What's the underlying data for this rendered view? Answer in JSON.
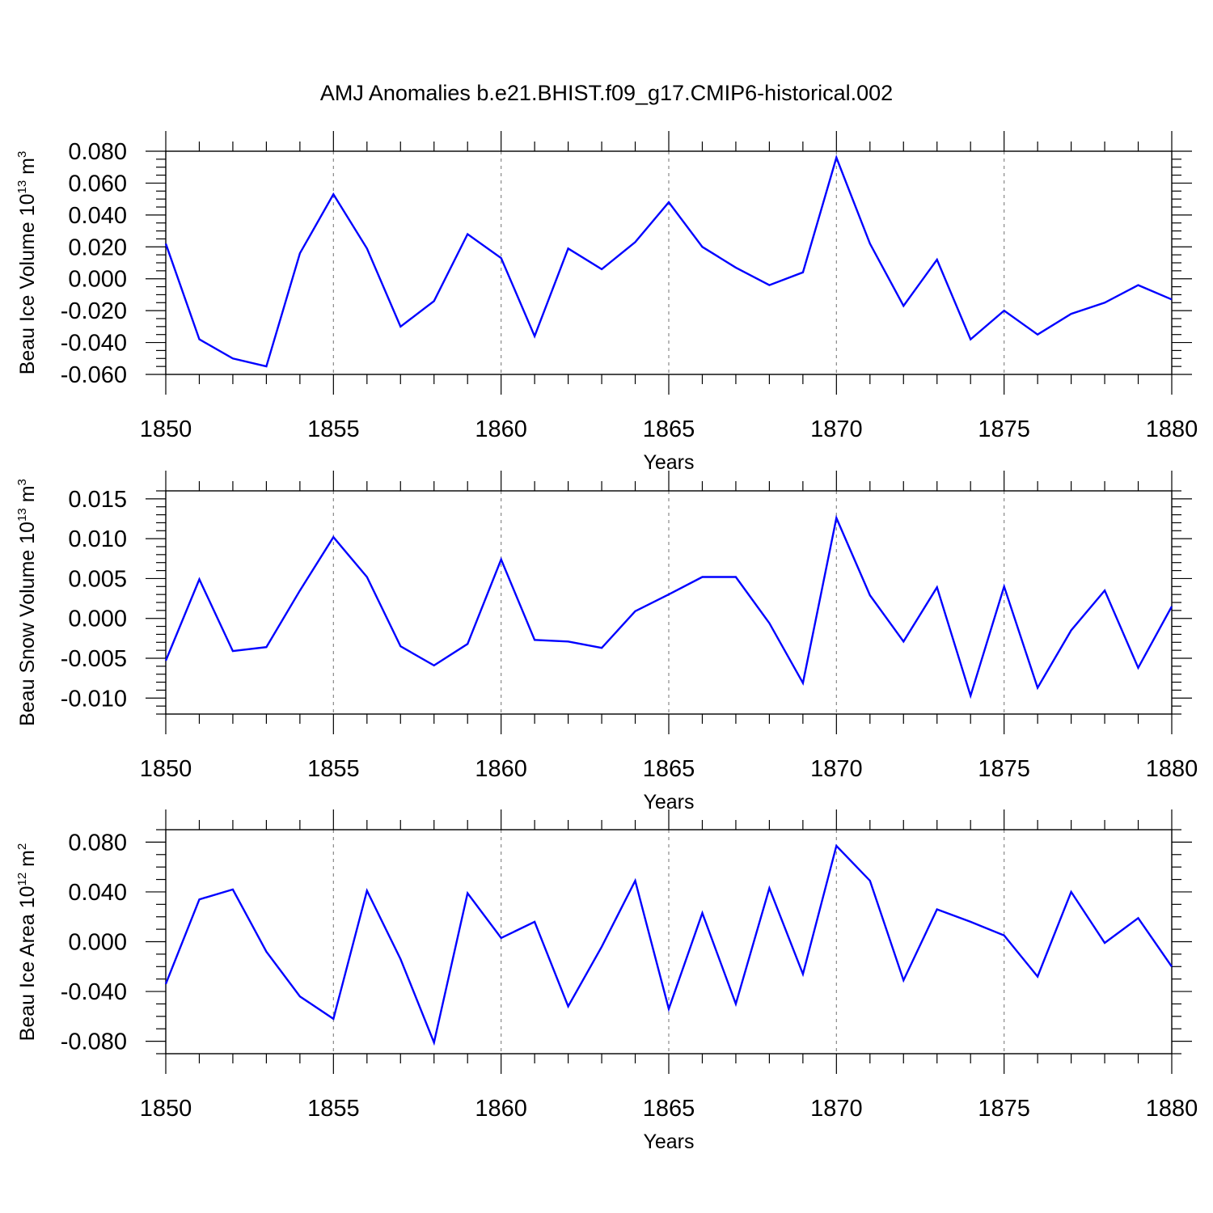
{
  "figure": {
    "title": "AMJ Anomalies b.e21.BHIST.f09_g17.CMIP6-historical.002"
  },
  "colors": {
    "line": "#0000ff",
    "axis": "#000000",
    "grid": "#888888"
  },
  "chart_data": [
    {
      "type": "line",
      "ylabel_main": "Beau Ice Volume 10",
      "ylabel_exp": "13",
      "ylabel_unit": " m",
      "ylabel_unit_exp": "3",
      "xlabel": "Years",
      "xlim": [
        1850,
        1880
      ],
      "ylim": [
        -0.06,
        0.08
      ],
      "ytick_labels": [
        "0.080",
        "0.060",
        "0.040",
        "0.020",
        "0.000",
        "-0.020",
        "-0.040",
        "-0.060"
      ],
      "yticks": [
        0.08,
        0.06,
        0.04,
        0.02,
        0.0,
        -0.02,
        -0.04,
        -0.06
      ],
      "yminor_step": 0.005,
      "xtick_labels": [
        "1850",
        "1855",
        "1860",
        "1865",
        "1870",
        "1875",
        "1880"
      ],
      "xticks": [
        1850,
        1855,
        1860,
        1865,
        1870,
        1875,
        1880
      ],
      "grid_x": [
        1855,
        1860,
        1865,
        1870,
        1875
      ],
      "series": [
        {
          "name": "Beau Ice Volume",
          "x": [
            1850,
            1851,
            1852,
            1853,
            1854,
            1855,
            1856,
            1857,
            1858,
            1859,
            1860,
            1861,
            1862,
            1863,
            1864,
            1865,
            1866,
            1867,
            1868,
            1869,
            1870,
            1871,
            1872,
            1873,
            1874,
            1875,
            1876,
            1877,
            1878,
            1879,
            1880
          ],
          "values": [
            0.022,
            -0.038,
            -0.05,
            -0.055,
            0.016,
            0.053,
            0.019,
            -0.03,
            -0.014,
            0.028,
            0.013,
            -0.036,
            0.019,
            0.006,
            0.023,
            0.048,
            0.02,
            0.007,
            -0.004,
            0.004,
            0.076,
            0.022,
            -0.017,
            0.012,
            -0.038,
            -0.02,
            -0.035,
            -0.022,
            -0.015,
            -0.004,
            -0.013
          ]
        }
      ]
    },
    {
      "type": "line",
      "ylabel_main": "Beau Snow Volume 10",
      "ylabel_exp": "13",
      "ylabel_unit": " m",
      "ylabel_unit_exp": "3",
      "xlabel": "Years",
      "xlim": [
        1850,
        1880
      ],
      "ylim": [
        -0.012,
        0.016
      ],
      "ytick_labels": [
        "0.015",
        "0.010",
        "0.005",
        "0.000",
        "-0.005",
        "-0.010"
      ],
      "yticks": [
        0.015,
        0.01,
        0.005,
        0.0,
        -0.005,
        -0.01
      ],
      "yminor_step": 0.001,
      "xtick_labels": [
        "1850",
        "1855",
        "1860",
        "1865",
        "1870",
        "1875",
        "1880"
      ],
      "xticks": [
        1850,
        1855,
        1860,
        1865,
        1870,
        1875,
        1880
      ],
      "grid_x": [
        1855,
        1860,
        1865,
        1870,
        1875
      ],
      "series": [
        {
          "name": "Beau Snow Volume",
          "x": [
            1850,
            1851,
            1852,
            1853,
            1854,
            1855,
            1856,
            1857,
            1858,
            1859,
            1860,
            1861,
            1862,
            1863,
            1864,
            1865,
            1866,
            1867,
            1868,
            1869,
            1870,
            1871,
            1872,
            1873,
            1874,
            1875,
            1876,
            1877,
            1878,
            1879,
            1880
          ],
          "values": [
            -0.0053,
            0.0049,
            -0.0041,
            -0.0036,
            0.0035,
            0.0102,
            0.0052,
            -0.0035,
            -0.0059,
            -0.0032,
            0.0074,
            -0.0027,
            -0.0029,
            -0.0037,
            0.0009,
            0.003,
            0.0052,
            0.0052,
            -0.0006,
            -0.0081,
            0.0126,
            0.0029,
            -0.0029,
            0.0039,
            -0.0097,
            0.004,
            -0.0087,
            -0.0015,
            0.0035,
            -0.0062,
            0.0015
          ]
        }
      ]
    },
    {
      "type": "line",
      "ylabel_main": "Beau Ice Area 10",
      "ylabel_exp": "12",
      "ylabel_unit": " m",
      "ylabel_unit_exp": "2",
      "xlabel": "Years",
      "xlim": [
        1850,
        1880
      ],
      "ylim": [
        -0.09,
        0.09
      ],
      "ytick_labels": [
        "0.080",
        "0.040",
        "0.000",
        "-0.040",
        "-0.080"
      ],
      "yticks": [
        0.08,
        0.04,
        0.0,
        -0.04,
        -0.08
      ],
      "yminor_step": 0.01,
      "xtick_labels": [
        "1850",
        "1855",
        "1860",
        "1865",
        "1870",
        "1875",
        "1880"
      ],
      "xticks": [
        1850,
        1855,
        1860,
        1865,
        1870,
        1875,
        1880
      ],
      "grid_x": [
        1855,
        1860,
        1865,
        1870,
        1875
      ],
      "series": [
        {
          "name": "Beau Ice Area",
          "x": [
            1850,
            1851,
            1852,
            1853,
            1854,
            1855,
            1856,
            1857,
            1858,
            1859,
            1860,
            1861,
            1862,
            1863,
            1864,
            1865,
            1866,
            1867,
            1868,
            1869,
            1870,
            1871,
            1872,
            1873,
            1874,
            1875,
            1876,
            1877,
            1878,
            1879,
            1880
          ],
          "values": [
            -0.034,
            0.034,
            0.042,
            -0.008,
            -0.044,
            -0.062,
            0.041,
            -0.014,
            -0.081,
            0.039,
            0.003,
            0.016,
            -0.052,
            -0.004,
            0.049,
            -0.054,
            0.023,
            -0.05,
            0.043,
            -0.026,
            0.077,
            0.049,
            -0.031,
            0.026,
            0.016,
            0.005,
            -0.028,
            0.04,
            -0.001,
            0.019,
            -0.02
          ]
        }
      ]
    }
  ]
}
